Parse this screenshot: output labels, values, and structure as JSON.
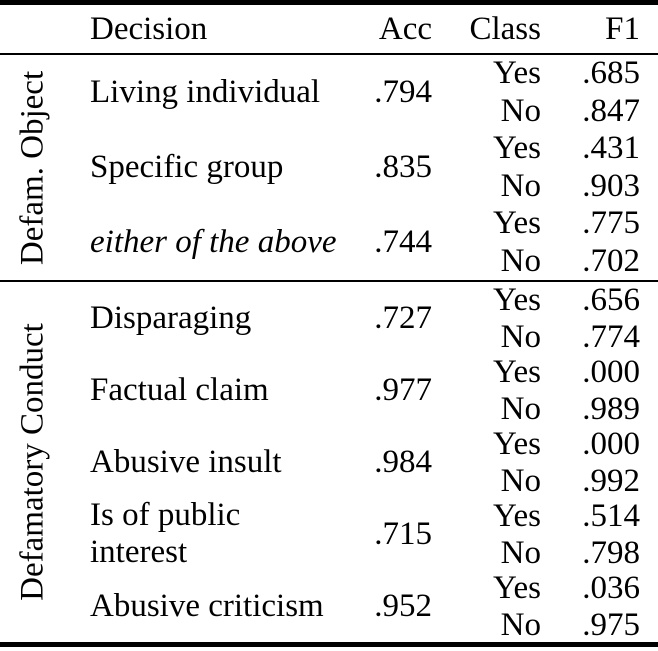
{
  "table": {
    "header": {
      "decision": "Decision",
      "acc": "Acc",
      "class": "Class",
      "f1": "F1"
    },
    "sections": [
      {
        "label": "Defam. Object",
        "rows": [
          {
            "decision": "Living individual",
            "acc": ".794",
            "sub": [
              {
                "class": "Yes",
                "f1": ".685"
              },
              {
                "class": "No",
                "f1": ".847"
              }
            ]
          },
          {
            "decision": "Specific group",
            "acc": ".835",
            "sub": [
              {
                "class": "Yes",
                "f1": ".431"
              },
              {
                "class": "No",
                "f1": ".903"
              }
            ]
          },
          {
            "decision": "either of the above",
            "style": "italic",
            "acc": ".744",
            "sub": [
              {
                "class": "Yes",
                "f1": ".775"
              },
              {
                "class": "No",
                "f1": ".702"
              }
            ]
          }
        ]
      },
      {
        "label": "Defamatory Conduct",
        "rows": [
          {
            "decision": "Disparaging",
            "acc": ".727",
            "sub": [
              {
                "class": "Yes",
                "f1": ".656"
              },
              {
                "class": "No",
                "f1": ".774"
              }
            ]
          },
          {
            "decision": "Factual claim",
            "acc": ".977",
            "sub": [
              {
                "class": "Yes",
                "f1": ".000"
              },
              {
                "class": "No",
                "f1": ".989"
              }
            ]
          },
          {
            "decision": "Abusive insult",
            "acc": ".984",
            "sub": [
              {
                "class": "Yes",
                "f1": ".000"
              },
              {
                "class": "No",
                "f1": ".992"
              }
            ]
          },
          {
            "decision": "Is of public interest",
            "acc": ".715",
            "sub": [
              {
                "class": "Yes",
                "f1": ".514"
              },
              {
                "class": "No",
                "f1": ".798"
              }
            ]
          },
          {
            "decision": "Abusive criticism",
            "acc": ".952",
            "sub": [
              {
                "class": "Yes",
                "f1": ".036"
              },
              {
                "class": "No",
                "f1": ".975"
              }
            ]
          }
        ]
      }
    ],
    "colors": {
      "text": "#000000",
      "background": "#ffffff",
      "rule": "#000000"
    }
  }
}
